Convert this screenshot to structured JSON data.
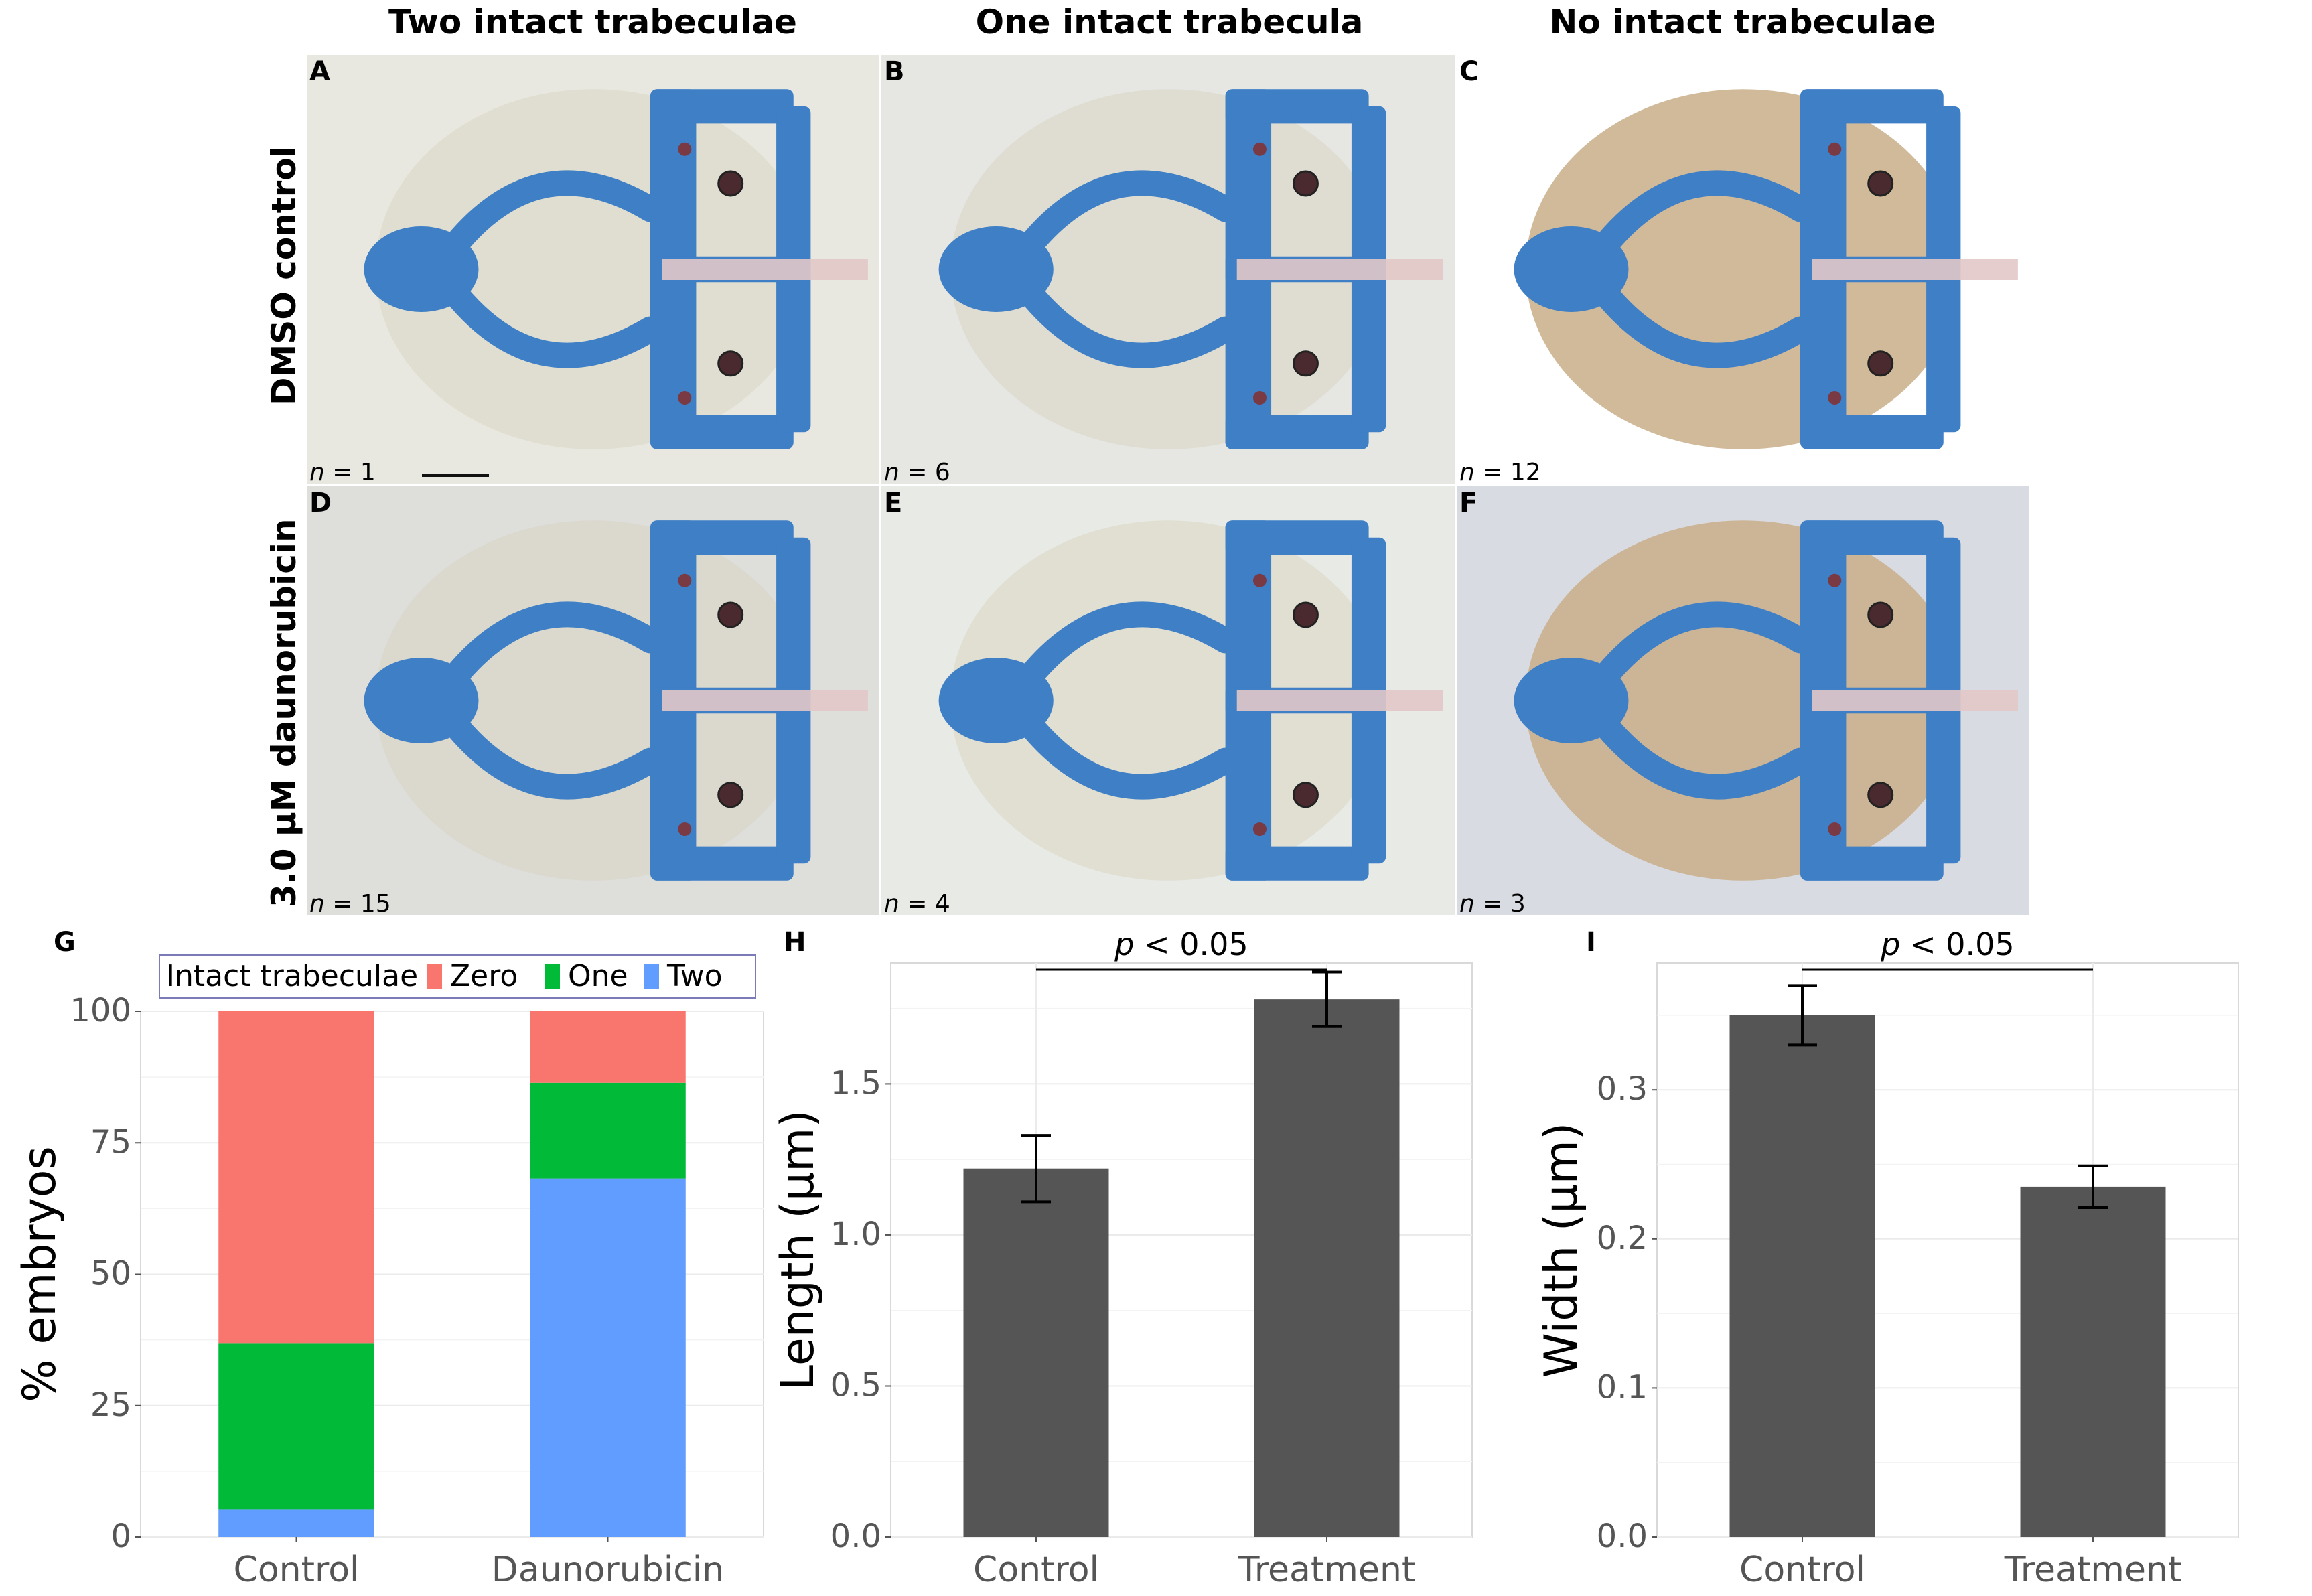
{
  "columns": [
    "Two intact trabeculae",
    "One intact trabecula",
    "No intact trabeculae"
  ],
  "rows": [
    "DMSO control",
    "3.0 μM daunorubicin"
  ],
  "panels": [
    {
      "label": "A",
      "n_prefix": "n",
      "n_value": " = 1"
    },
    {
      "label": "B",
      "n_prefix": "n",
      "n_value": " = 6"
    },
    {
      "label": "C",
      "n_prefix": "n",
      "n_value": " = 12"
    },
    {
      "label": "D",
      "n_prefix": "n",
      "n_value": " = 15"
    },
    {
      "label": "E",
      "n_prefix": "n",
      "n_value": " = 4"
    },
    {
      "label": "F",
      "n_prefix": "n",
      "n_value": " = 3"
    }
  ],
  "colors": {
    "cartilage": "#3e7fc6",
    "zero": "#f8766d",
    "one": "#00ba38",
    "two": "#619cff",
    "bar": "#555555"
  },
  "chart_data": [
    {
      "panel": "G",
      "type": "bar",
      "stacked": true,
      "ylabel": "% embryos",
      "xlabel": "",
      "legend_title": "Intact trabeculae",
      "legend_position": "top",
      "categories": [
        "Control",
        "Daunorubicin"
      ],
      "series": [
        {
          "name": "Zero",
          "values": [
            63.2,
            13.6
          ],
          "color": "#f8766d"
        },
        {
          "name": "One",
          "values": [
            31.6,
            18.2
          ],
          "color": "#00ba38"
        },
        {
          "name": "Two",
          "values": [
            5.3,
            68.2
          ],
          "color": "#619cff"
        }
      ],
      "stack_order": [
        "Two",
        "One",
        "Zero"
      ],
      "ylim": [
        0,
        100
      ],
      "yticks": [
        "0",
        "25",
        "50",
        "75",
        "100"
      ],
      "grid": true
    },
    {
      "panel": "H",
      "type": "bar",
      "ylabel": "Length (μm)",
      "xlabel": "",
      "categories": [
        "Control",
        "Treatment"
      ],
      "values": [
        1.22,
        1.78
      ],
      "error": [
        0.11,
        0.09
      ],
      "ylim": [
        0,
        1.9
      ],
      "yticks": [
        "0.0",
        "0.5",
        "1.0",
        "1.5"
      ],
      "annotation_p": "p",
      "annotation_rest": " < 0.05",
      "grid": true
    },
    {
      "panel": "I",
      "type": "bar",
      "ylabel": "Width (μm)",
      "xlabel": "",
      "categories": [
        "Control",
        "Treatment"
      ],
      "values": [
        0.35,
        0.235
      ],
      "error": [
        0.02,
        0.014
      ],
      "ylim": [
        0,
        0.385
      ],
      "yticks": [
        "0.0",
        "0.1",
        "0.2",
        "0.3"
      ],
      "annotation_p": "p",
      "annotation_rest": " < 0.05",
      "grid": true
    }
  ]
}
